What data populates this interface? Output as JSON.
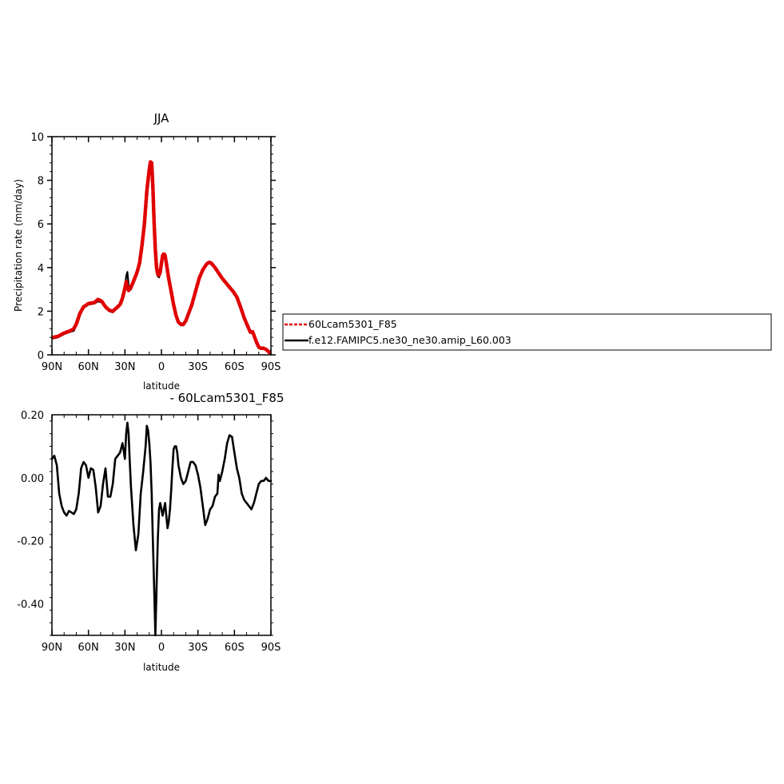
{
  "chart_data": [
    {
      "type": "line",
      "title": "JJA",
      "xlabel": "latitude",
      "ylabel": "Precipitation rate (mm/day)",
      "xlim": [
        90,
        -90
      ],
      "ylim": [
        0,
        10
      ],
      "x_ticks": [
        90,
        60,
        30,
        0,
        -30,
        -60,
        -90
      ],
      "x_tick_labels": [
        "90N",
        "60N",
        "30N",
        "0",
        "30S",
        "60S",
        "90S"
      ],
      "y_ticks": [
        0,
        2,
        4,
        6,
        8,
        10
      ],
      "y_tick_labels": [
        "0",
        "2",
        "4",
        "6",
        "8",
        "10"
      ],
      "grid": false,
      "legend": "right",
      "series": [
        {
          "name": "60Lcam5301_F85",
          "color": "#e00000",
          "style": "dashed",
          "points": [
            [
              89,
              0.8
            ],
            [
              85,
              0.85
            ],
            [
              80,
              1.0
            ],
            [
              75,
              1.1
            ],
            [
              72,
              1.2
            ],
            [
              70,
              1.4
            ],
            [
              67,
              1.9
            ],
            [
              64,
              2.2
            ],
            [
              60,
              2.35
            ],
            [
              55,
              2.4
            ],
            [
              52,
              2.55
            ],
            [
              49,
              2.45
            ],
            [
              46,
              2.2
            ],
            [
              43,
              2.05
            ],
            [
              40,
              2.0
            ],
            [
              37,
              2.15
            ],
            [
              34,
              2.3
            ],
            [
              32,
              2.6
            ],
            [
              30,
              3.05
            ],
            [
              29,
              3.35
            ],
            [
              28,
              3.15
            ],
            [
              27,
              2.95
            ],
            [
              25,
              3.1
            ],
            [
              22,
              3.5
            ],
            [
              20,
              3.8
            ],
            [
              18,
              4.2
            ],
            [
              16,
              5.0
            ],
            [
              14,
              6.0
            ],
            [
              12,
              7.5
            ],
            [
              10,
              8.5
            ],
            [
              9,
              8.85
            ],
            [
              8,
              8.8
            ],
            [
              7,
              7.7
            ],
            [
              6,
              6.0
            ],
            [
              5,
              4.8
            ],
            [
              4,
              4.0
            ],
            [
              3,
              3.7
            ],
            [
              2,
              3.65
            ],
            [
              1,
              3.8
            ],
            [
              0,
              4.2
            ],
            [
              -1,
              4.55
            ],
            [
              -2,
              4.65
            ],
            [
              -3,
              4.55
            ],
            [
              -4,
              4.2
            ],
            [
              -6,
              3.5
            ],
            [
              -8,
              2.9
            ],
            [
              -10,
              2.3
            ],
            [
              -12,
              1.8
            ],
            [
              -14,
              1.5
            ],
            [
              -16,
              1.4
            ],
            [
              -18,
              1.4
            ],
            [
              -20,
              1.55
            ],
            [
              -22,
              1.85
            ],
            [
              -25,
              2.3
            ],
            [
              -28,
              2.9
            ],
            [
              -31,
              3.5
            ],
            [
              -34,
              3.9
            ],
            [
              -37,
              4.15
            ],
            [
              -39,
              4.25
            ],
            [
              -41,
              4.2
            ],
            [
              -44,
              4.0
            ],
            [
              -47,
              3.75
            ],
            [
              -50,
              3.5
            ],
            [
              -53,
              3.3
            ],
            [
              -56,
              3.1
            ],
            [
              -59,
              2.9
            ],
            [
              -62,
              2.65
            ],
            [
              -65,
              2.2
            ],
            [
              -68,
              1.7
            ],
            [
              -71,
              1.3
            ],
            [
              -73,
              1.05
            ],
            [
              -75,
              1.05
            ],
            [
              -76,
              0.9
            ],
            [
              -78,
              0.6
            ],
            [
              -80,
              0.35
            ],
            [
              -82,
              0.3
            ],
            [
              -84,
              0.3
            ],
            [
              -86,
              0.25
            ],
            [
              -88,
              0.15
            ],
            [
              -89,
              0.1
            ]
          ]
        },
        {
          "name": "f.e12.FAMIPC5.ne30_ne30.amip_L60.003",
          "color": "#000000",
          "style": "solid",
          "points": [
            [
              89,
              0.75
            ],
            [
              85,
              0.8
            ],
            [
              80,
              0.95
            ],
            [
              75,
              1.05
            ],
            [
              72,
              1.1
            ],
            [
              70,
              1.35
            ],
            [
              67,
              1.85
            ],
            [
              64,
              2.15
            ],
            [
              60,
              2.3
            ],
            [
              55,
              2.35
            ],
            [
              52,
              2.45
            ],
            [
              49,
              2.4
            ],
            [
              46,
              2.15
            ],
            [
              43,
              2.0
            ],
            [
              40,
              1.95
            ],
            [
              37,
              2.1
            ],
            [
              34,
              2.25
            ],
            [
              32,
              2.55
            ],
            [
              30,
              3.1
            ],
            [
              29,
              3.6
            ],
            [
              28,
              3.8
            ],
            [
              27,
              3.2
            ],
            [
              25,
              3.0
            ],
            [
              22,
              3.4
            ],
            [
              20,
              3.7
            ],
            [
              18,
              4.1
            ],
            [
              16,
              4.9
            ],
            [
              14,
              5.9
            ],
            [
              12,
              7.4
            ],
            [
              10,
              8.4
            ],
            [
              9,
              8.75
            ],
            [
              8,
              8.7
            ],
            [
              7,
              7.6
            ],
            [
              6,
              5.9
            ],
            [
              5,
              4.7
            ],
            [
              4,
              3.9
            ],
            [
              3,
              3.6
            ],
            [
              2,
              3.55
            ],
            [
              1,
              3.7
            ],
            [
              0,
              4.1
            ],
            [
              -1,
              4.5
            ],
            [
              -2,
              4.6
            ],
            [
              -3,
              4.5
            ],
            [
              -4,
              4.15
            ],
            [
              -6,
              3.45
            ],
            [
              -8,
              2.85
            ],
            [
              -10,
              2.25
            ],
            [
              -12,
              1.75
            ],
            [
              -14,
              1.45
            ],
            [
              -16,
              1.35
            ],
            [
              -18,
              1.35
            ],
            [
              -20,
              1.5
            ],
            [
              -22,
              1.8
            ],
            [
              -25,
              2.25
            ],
            [
              -28,
              2.85
            ],
            [
              -31,
              3.45
            ],
            [
              -34,
              3.85
            ],
            [
              -37,
              4.1
            ],
            [
              -39,
              4.2
            ],
            [
              -41,
              4.15
            ],
            [
              -44,
              3.95
            ],
            [
              -47,
              3.7
            ],
            [
              -50,
              3.45
            ],
            [
              -53,
              3.25
            ],
            [
              -56,
              3.05
            ],
            [
              -59,
              2.85
            ],
            [
              -62,
              2.6
            ],
            [
              -65,
              2.15
            ],
            [
              -68,
              1.65
            ],
            [
              -71,
              1.25
            ],
            [
              -73,
              1.0
            ],
            [
              -75,
              1.0
            ],
            [
              -76,
              0.85
            ],
            [
              -78,
              0.55
            ],
            [
              -80,
              0.3
            ],
            [
              -82,
              0.28
            ],
            [
              -84,
              0.28
            ],
            [
              -86,
              0.22
            ],
            [
              -88,
              0.12
            ],
            [
              -89,
              0.08
            ]
          ]
        }
      ]
    },
    {
      "type": "line",
      "title": "- 60Lcam5301_F85",
      "xlabel": "latitude",
      "ylabel": "",
      "xlim": [
        90,
        -90
      ],
      "ylim": [
        -0.5,
        0.2
      ],
      "x_ticks": [
        90,
        60,
        30,
        0,
        -30,
        -60,
        -90
      ],
      "x_tick_labels": [
        "90N",
        "60N",
        "30N",
        "0",
        "30S",
        "60S",
        "90S"
      ],
      "y_ticks": [
        0.2,
        0.0,
        -0.2,
        -0.4
      ],
      "y_tick_labels": [
        "0.20",
        "0.00",
        "-0.20",
        "-0.40"
      ],
      "grid": false,
      "series": [
        {
          "color": "#000000",
          "style": "solid",
          "points": [
            [
              90,
              0.06
            ],
            [
              88,
              0.07
            ],
            [
              86,
              0.04
            ],
            [
              84,
              -0.05
            ],
            [
              82,
              -0.09
            ],
            [
              80,
              -0.11
            ],
            [
              78,
              -0.12
            ],
            [
              76,
              -0.105
            ],
            [
              74,
              -0.11
            ],
            [
              72,
              -0.115
            ],
            [
              70,
              -0.1
            ],
            [
              68,
              -0.05
            ],
            [
              66,
              0.03
            ],
            [
              64,
              0.05
            ],
            [
              62,
              0.04
            ],
            [
              60,
              0.0
            ],
            [
              58,
              0.03
            ],
            [
              56,
              0.025
            ],
            [
              54,
              -0.03
            ],
            [
              52,
              -0.11
            ],
            [
              50,
              -0.09
            ],
            [
              48,
              -0.02
            ],
            [
              46,
              0.03
            ],
            [
              44,
              -0.06
            ],
            [
              42,
              -0.06
            ],
            [
              40,
              -0.02
            ],
            [
              38,
              0.06
            ],
            [
              36,
              0.07
            ],
            [
              34,
              0.08
            ],
            [
              32,
              0.11
            ],
            [
              31,
              0.085
            ],
            [
              30,
              0.06
            ],
            [
              29,
              0.14
            ],
            [
              28,
              0.175
            ],
            [
              27,
              0.14
            ],
            [
              26,
              0.05
            ],
            [
              25,
              -0.03
            ],
            [
              23,
              -0.15
            ],
            [
              21,
              -0.23
            ],
            [
              19,
              -0.18
            ],
            [
              17,
              -0.05
            ],
            [
              15,
              0.02
            ],
            [
              13,
              0.1
            ],
            [
              12,
              0.165
            ],
            [
              11,
              0.15
            ],
            [
              10,
              0.11
            ],
            [
              9,
              0.05
            ],
            [
              8,
              -0.05
            ],
            [
              7,
              -0.2
            ],
            [
              6,
              -0.35
            ],
            [
              5,
              -0.5
            ],
            [
              4,
              -0.35
            ],
            [
              3,
              -0.2
            ],
            [
              2,
              -0.1
            ],
            [
              1,
              -0.08
            ],
            [
              0,
              -0.1
            ],
            [
              -1,
              -0.12
            ],
            [
              -2,
              -0.1
            ],
            [
              -3,
              -0.08
            ],
            [
              -4,
              -0.12
            ],
            [
              -5,
              -0.16
            ],
            [
              -6,
              -0.14
            ],
            [
              -7,
              -0.1
            ],
            [
              -8,
              -0.04
            ],
            [
              -9,
              0.03
            ],
            [
              -10,
              0.09
            ],
            [
              -11,
              0.1
            ],
            [
              -12,
              0.1
            ],
            [
              -13,
              0.08
            ],
            [
              -14,
              0.04
            ],
            [
              -16,
              0.0
            ],
            [
              -18,
              -0.02
            ],
            [
              -20,
              -0.01
            ],
            [
              -22,
              0.02
            ],
            [
              -24,
              0.05
            ],
            [
              -26,
              0.05
            ],
            [
              -28,
              0.04
            ],
            [
              -30,
              0.01
            ],
            [
              -32,
              -0.03
            ],
            [
              -34,
              -0.09
            ],
            [
              -36,
              -0.15
            ],
            [
              -38,
              -0.13
            ],
            [
              -40,
              -0.1
            ],
            [
              -42,
              -0.09
            ],
            [
              -44,
              -0.06
            ],
            [
              -46,
              -0.05
            ],
            [
              -47,
              0.01
            ],
            [
              -48,
              -0.01
            ],
            [
              -50,
              0.02
            ],
            [
              -52,
              0.06
            ],
            [
              -54,
              0.11
            ],
            [
              -56,
              0.135
            ],
            [
              -58,
              0.13
            ],
            [
              -60,
              0.08
            ],
            [
              -62,
              0.03
            ],
            [
              -64,
              0.0
            ],
            [
              -66,
              -0.05
            ],
            [
              -68,
              -0.07
            ],
            [
              -70,
              -0.08
            ],
            [
              -72,
              -0.09
            ],
            [
              -74,
              -0.1
            ],
            [
              -76,
              -0.08
            ],
            [
              -78,
              -0.05
            ],
            [
              -80,
              -0.02
            ],
            [
              -82,
              -0.01
            ],
            [
              -84,
              -0.01
            ],
            [
              -86,
              0.0
            ],
            [
              -88,
              -0.01
            ],
            [
              -90,
              -0.01
            ]
          ]
        }
      ]
    }
  ]
}
